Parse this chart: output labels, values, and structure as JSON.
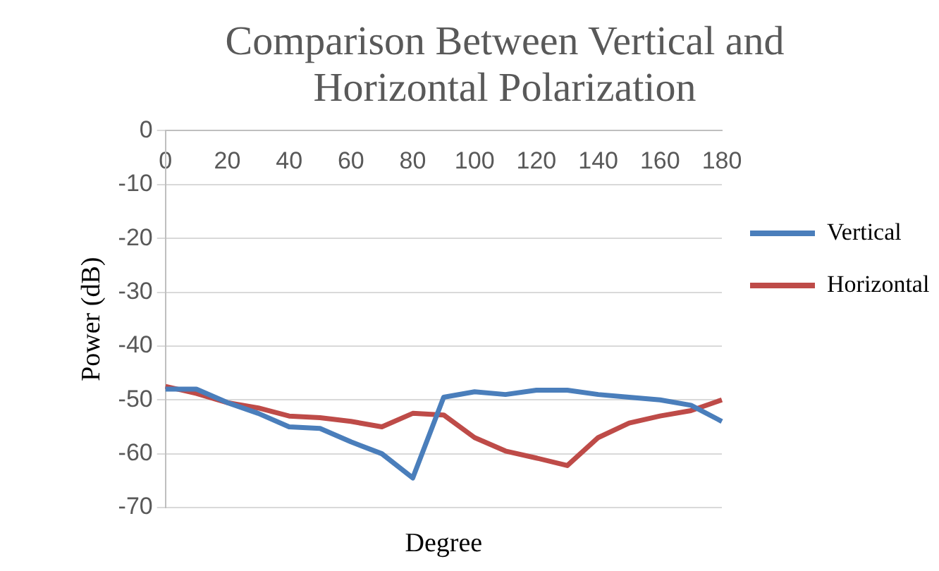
{
  "chart_data": {
    "type": "line",
    "title": "Comparison Between Vertical and Horizontal Polarization",
    "xlabel": "Degree",
    "ylabel": "Power (dB)",
    "categories": [
      "0",
      null,
      "20",
      null,
      "40",
      null,
      "60",
      null,
      "80",
      null,
      "100",
      null,
      "120",
      null,
      "140",
      null,
      "160",
      null,
      "180"
    ],
    "series": [
      {
        "name": "Vertical",
        "color": "#4a7ebb",
        "values": [
          -48,
          -48,
          -50.5,
          -52.5,
          -55,
          -55.3,
          -57.8,
          -60,
          -64.5,
          -49.5,
          -48.5,
          -49,
          -48.2,
          -48.2,
          -49,
          -49.5,
          -50,
          -51,
          -54
        ]
      },
      {
        "name": "Horizontal",
        "color": "#be4b48",
        "values": [
          -47.5,
          -48.8,
          -50.5,
          -51.5,
          -53,
          -53.3,
          -54,
          -55,
          -52.5,
          -52.8,
          -57,
          -59.5,
          -60.8,
          -62.2,
          -57,
          -54.3,
          -53,
          -52,
          -50
        ]
      }
    ],
    "ylim": [
      -70,
      0
    ],
    "yticks": [
      -70,
      -60,
      -50,
      -40,
      -30,
      -20,
      -10,
      0
    ],
    "grid": "y",
    "legend": "right",
    "marker": "none",
    "line_style": "solid"
  }
}
